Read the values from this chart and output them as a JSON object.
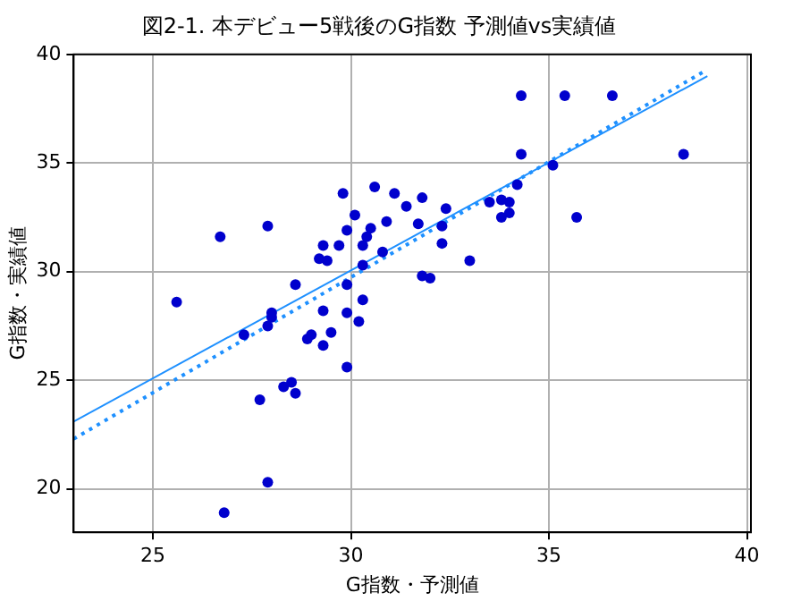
{
  "chart_data": {
    "type": "scatter",
    "title": "図2-1. 本デビュー5戦後のG指数 予測値vs実績値",
    "xlabel": "G指数・予測値",
    "ylabel": "G指数・実績値",
    "xlim": [
      23,
      40.1
    ],
    "xticks": [
      25,
      30,
      35,
      40
    ],
    "ylim": [
      18,
      40
    ],
    "yticks": [
      20,
      25,
      30,
      35,
      40
    ],
    "grid": true,
    "legend": false,
    "series": [
      {
        "color": "#0000cd",
        "marker": "circle",
        "x": [
          25.6,
          26.7,
          27.9,
          26.8,
          27.9,
          27.7,
          28.3,
          28.5,
          28.6,
          28.6,
          27.3,
          27.9,
          28.0,
          28.0,
          28.9,
          29.0,
          29.3,
          29.5,
          29.3,
          29.9,
          29.9,
          29.9,
          30.3,
          30.2,
          30.3,
          29.3,
          29.2,
          29.4,
          29.7,
          29.8,
          29.9,
          30.1,
          30.6,
          31.1,
          31.4,
          30.9,
          30.5,
          30.4,
          30.3,
          30.8,
          31.8,
          31.7,
          32.4,
          32.3,
          32.3,
          31.8,
          32.0,
          33.0,
          33.5,
          33.8,
          34.0,
          34.0,
          33.8,
          34.2,
          34.3,
          35.4,
          36.6,
          34.3,
          35.1,
          35.7,
          38.4
        ],
        "values": [
          28.6,
          31.6,
          32.1,
          18.9,
          20.3,
          24.1,
          24.7,
          24.9,
          24.4,
          29.4,
          27.1,
          27.5,
          27.9,
          28.1,
          26.9,
          27.1,
          26.6,
          27.2,
          28.2,
          25.6,
          28.1,
          29.4,
          28.7,
          27.7,
          30.3,
          31.2,
          30.6,
          30.5,
          31.2,
          33.6,
          31.9,
          32.6,
          33.9,
          33.6,
          33.0,
          32.3,
          32.0,
          31.6,
          31.2,
          30.9,
          33.4,
          32.2,
          32.9,
          32.1,
          31.3,
          29.8,
          29.7,
          30.5,
          33.2,
          33.3,
          33.2,
          32.7,
          32.5,
          34.0,
          38.1,
          38.1,
          38.1,
          35.4,
          34.9,
          32.5,
          35.4
        ]
      },
      {
        "type": "line",
        "color": "#1e90ff",
        "line_style": "solid",
        "marker": "none",
        "x": [
          23,
          39
        ],
        "values": [
          23.1,
          39.0
        ]
      },
      {
        "type": "line",
        "color": "#1e90ff",
        "line_style": "dotted",
        "marker": "none",
        "x": [
          23,
          38.9
        ],
        "values": [
          22.3,
          39.2
        ]
      }
    ]
  }
}
